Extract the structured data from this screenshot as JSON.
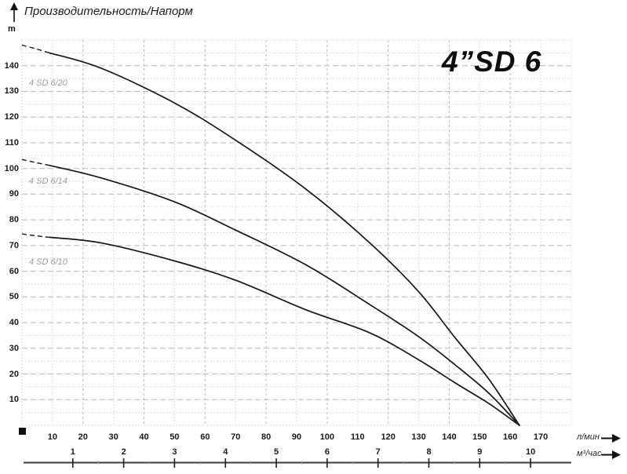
{
  "header": {
    "title": "Производительность/Напорм"
  },
  "chart_data": {
    "type": "line",
    "title": "4”SD 6",
    "ylabel": "m",
    "xlabel_primary": "л/мин",
    "xlabel_secondary": "м³/час",
    "xlim": [
      0,
      180
    ],
    "ylim": [
      0,
      150
    ],
    "grid": {
      "x_step": 10,
      "x_major_every": 20,
      "y_step": 5,
      "y_major_every": 10,
      "grid_on": true
    },
    "y_ticks": [
      10,
      20,
      30,
      40,
      50,
      60,
      70,
      80,
      90,
      100,
      110,
      120,
      130,
      140
    ],
    "x_ticks_lmin": [
      10,
      20,
      30,
      40,
      50,
      60,
      70,
      80,
      90,
      100,
      110,
      120,
      130,
      140,
      150,
      160,
      170
    ],
    "x_ticks_m3h": [
      1,
      2,
      3,
      4,
      5,
      6,
      7,
      8,
      9,
      10
    ],
    "lmin_per_m3h": 16.6667,
    "legend_position": "inline-left",
    "series": [
      {
        "name": "4 SD 6/20",
        "label_at": [
          2.3,
          135.0
        ],
        "dashed_points": [
          [
            0,
            148
          ],
          [
            4.5,
            146.6
          ],
          [
            9,
            145
          ]
        ],
        "points": [
          [
            9,
            145
          ],
          [
            26,
            139
          ],
          [
            50,
            125.5
          ],
          [
            70,
            111
          ],
          [
            93,
            92
          ],
          [
            114,
            71
          ],
          [
            130,
            52
          ],
          [
            142,
            34
          ],
          [
            153,
            18
          ],
          [
            163,
            0
          ]
        ]
      },
      {
        "name": "4 SD 6/14",
        "label_at": [
          2.3,
          96.8
        ],
        "dashed_points": [
          [
            0,
            103.5
          ],
          [
            4.5,
            102.3
          ],
          [
            9,
            101.2
          ]
        ],
        "points": [
          [
            9,
            101.2
          ],
          [
            26,
            96.3
          ],
          [
            50,
            87
          ],
          [
            70,
            76
          ],
          [
            93,
            62.5
          ],
          [
            114,
            47
          ],
          [
            130,
            34.5
          ],
          [
            142,
            23.5
          ],
          [
            153,
            12.5
          ],
          [
            163,
            0
          ]
        ]
      },
      {
        "name": "4 SD 6/10",
        "label_at": [
          2.3,
          65.4
        ],
        "dashed_points": [
          [
            0,
            74.5
          ],
          [
            4.5,
            73.8
          ],
          [
            9,
            73.2
          ]
        ],
        "points": [
          [
            9,
            73.2
          ],
          [
            26,
            71
          ],
          [
            50,
            64
          ],
          [
            70,
            56.5
          ],
          [
            93,
            45
          ],
          [
            114,
            36
          ],
          [
            130,
            25.5
          ],
          [
            142,
            16.5
          ],
          [
            153,
            8.5
          ],
          [
            163,
            0
          ]
        ]
      }
    ],
    "convergence_point": [
      163,
      0
    ]
  },
  "colors": {
    "curve": "#151515",
    "grid_major": "#b8b8b8",
    "grid_minor": "#d4d4d4",
    "curve_label": "#9c9c9c",
    "text": "#1a1a1a",
    "ruler": "#3c3c3c",
    "background": "#ffffff"
  }
}
